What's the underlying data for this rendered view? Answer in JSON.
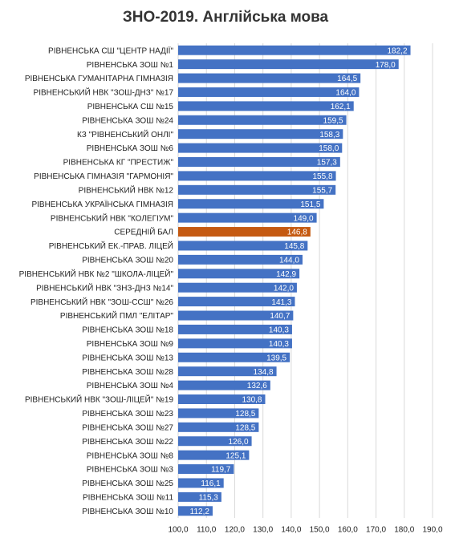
{
  "chart_data": {
    "type": "hbar",
    "title": "ЗНО-2019. Англійська мова",
    "categories": [
      "РІВНЕНСЬКА СШ \"ЦЕНТР НАДІЇ\"",
      "РІВНЕНСЬКА ЗОШ №1",
      "РІВНЕНСЬКА ГУМАНІТАРНА ГІМНАЗІЯ",
      "РІВНЕНСЬКИЙ НВК \"ЗОШ-ДНЗ\" №17",
      "РІВНЕНСЬКА СШ №15",
      "РІВНЕНСЬКА ЗОШ №24",
      "КЗ \"РІВНЕНСЬКИЙ ОНЛІ\"",
      "РІВНЕНСЬКА ЗОШ №6",
      "РІВНЕНСЬКА КГ \"ПРЕСТИЖ\"",
      "РІВНЕНСЬКА ГІМНАЗІЯ \"ГАРМОНІЯ\"",
      "РІВНЕНСЬКИЙ НВК №12",
      "РІВНЕНСЬКА УКРАЇНСЬКА ГІМНАЗІЯ",
      "РІВНЕНСЬКИЙ НВК \"КОЛЕГІУМ\"",
      "СЕРЕДНІЙ БАЛ",
      "РІВНЕНСЬКИЙ ЕК.-ПРАВ. ЛІЦЕЙ",
      "РІВНЕНСЬКА ЗОШ №20",
      "РІВНЕНСЬКИЙ НВК №2 \"ШКОЛА-ЛІЦЕЙ\"",
      "РІВНЕНСЬКИЙ НВК \"ЗНЗ-ДНЗ №14\"",
      "РІВНЕНСЬКИЙ НВК \"ЗОШ-ССШ\" №26",
      "РІВНЕНСЬКИЙ ПМЛ \"ЕЛІТАР\"",
      "РІВНЕНСЬКА ЗОШ №18",
      "РІВНЕНСЬКА ЗОШ №9",
      "РІВНЕНСЬКА ЗОШ №13",
      "РІВНЕНСЬКА ЗОШ №28",
      "РІВНЕНСЬКА ЗОШ №4",
      "РІВНЕНСЬКИЙ НВК \"ЗОШ-ЛІЦЕЙ\" №19",
      "РІВНЕНСЬКА ЗОШ №23",
      "РІВНЕНСЬКА ЗОШ №27",
      "РІВНЕНСЬКА ЗОШ №22",
      "РІВНЕНСЬКА ЗОШ №8",
      "РІВНЕНСЬКА ЗОШ №3",
      "РІВНЕНСЬКА ЗОШ №25",
      "РІВНЕНСЬКА ЗОШ №11",
      "РІВНЕНСЬКА ЗОШ №10"
    ],
    "values": [
      182.2,
      178.0,
      164.5,
      164.0,
      162.1,
      159.5,
      158.3,
      158.0,
      157.3,
      155.8,
      155.7,
      151.5,
      149.0,
      146.8,
      145.8,
      144.0,
      142.9,
      142.0,
      141.3,
      140.7,
      140.3,
      140.3,
      139.5,
      134.8,
      132.6,
      130.8,
      128.5,
      128.5,
      126.0,
      125.1,
      119.7,
      116.1,
      115.3,
      112.2
    ],
    "value_labels": [
      "182,2",
      "178,0",
      "164,5",
      "164,0",
      "162,1",
      "159,5",
      "158,3",
      "158,0",
      "157,3",
      "155,8",
      "155,7",
      "151,5",
      "149,0",
      "146,8",
      "145,8",
      "144,0",
      "142,9",
      "142,0",
      "141,3",
      "140,7",
      "140,3",
      "140,3",
      "139,5",
      "134,8",
      "132,6",
      "130,8",
      "128,5",
      "128,5",
      "126,0",
      "125,1",
      "119,7",
      "116,1",
      "115,3",
      "112,2"
    ],
    "colors": [
      "#4472c4",
      "#4472c4",
      "#4472c4",
      "#4472c4",
      "#4472c4",
      "#4472c4",
      "#4472c4",
      "#4472c4",
      "#4472c4",
      "#4472c4",
      "#4472c4",
      "#4472c4",
      "#4472c4",
      "#c55a11",
      "#4472c4",
      "#4472c4",
      "#4472c4",
      "#4472c4",
      "#4472c4",
      "#4472c4",
      "#4472c4",
      "#4472c4",
      "#4472c4",
      "#4472c4",
      "#4472c4",
      "#4472c4",
      "#4472c4",
      "#4472c4",
      "#4472c4",
      "#4472c4",
      "#4472c4",
      "#4472c4",
      "#4472c4",
      "#4472c4"
    ],
    "xlim": [
      100,
      190
    ],
    "xticks": [
      {
        "value": 100,
        "label": "100,0"
      },
      {
        "value": 110,
        "label": "110,0"
      },
      {
        "value": 120,
        "label": "120,0"
      },
      {
        "value": 130,
        "label": "130,0"
      },
      {
        "value": 140,
        "label": "140,0"
      },
      {
        "value": 150,
        "label": "150,0"
      },
      {
        "value": 160,
        "label": "160,0"
      },
      {
        "value": 170,
        "label": "170,0"
      },
      {
        "value": 180,
        "label": "180,0"
      },
      {
        "value": 190,
        "label": "190,0"
      }
    ],
    "grid": true
  }
}
